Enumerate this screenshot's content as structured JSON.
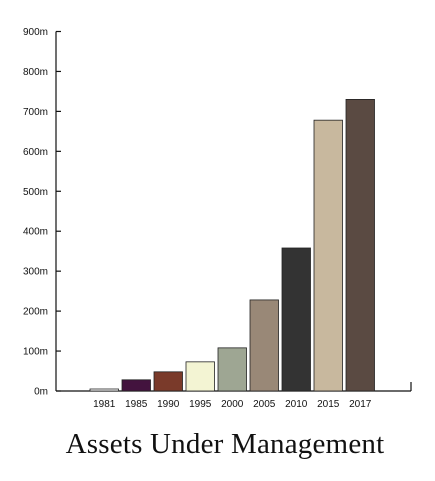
{
  "chart_data": {
    "type": "bar",
    "title": "Assets Under Management",
    "xlabel": "",
    "ylabel": "",
    "categories": [
      "1981",
      "1985",
      "1990",
      "1995",
      "2000",
      "2005",
      "2010",
      "2015",
      "2017"
    ],
    "values": [
      5,
      28,
      48,
      73,
      108,
      228,
      358,
      678,
      730
    ],
    "colors": [
      "#ffffff",
      "#43133e",
      "#7a3a2a",
      "#f3f4d3",
      "#9ea693",
      "#998877",
      "#333333",
      "#c8b89e",
      "#5a4a42"
    ],
    "ylim": [
      0,
      900
    ],
    "y_ticks": [
      0,
      100,
      200,
      300,
      400,
      500,
      600,
      700,
      800,
      900
    ],
    "y_tick_labels": [
      "0m",
      "100m",
      "200m",
      "300m",
      "400m",
      "500m",
      "600m",
      "700m",
      "800m",
      "900m"
    ],
    "grid": false,
    "legend": "none"
  }
}
